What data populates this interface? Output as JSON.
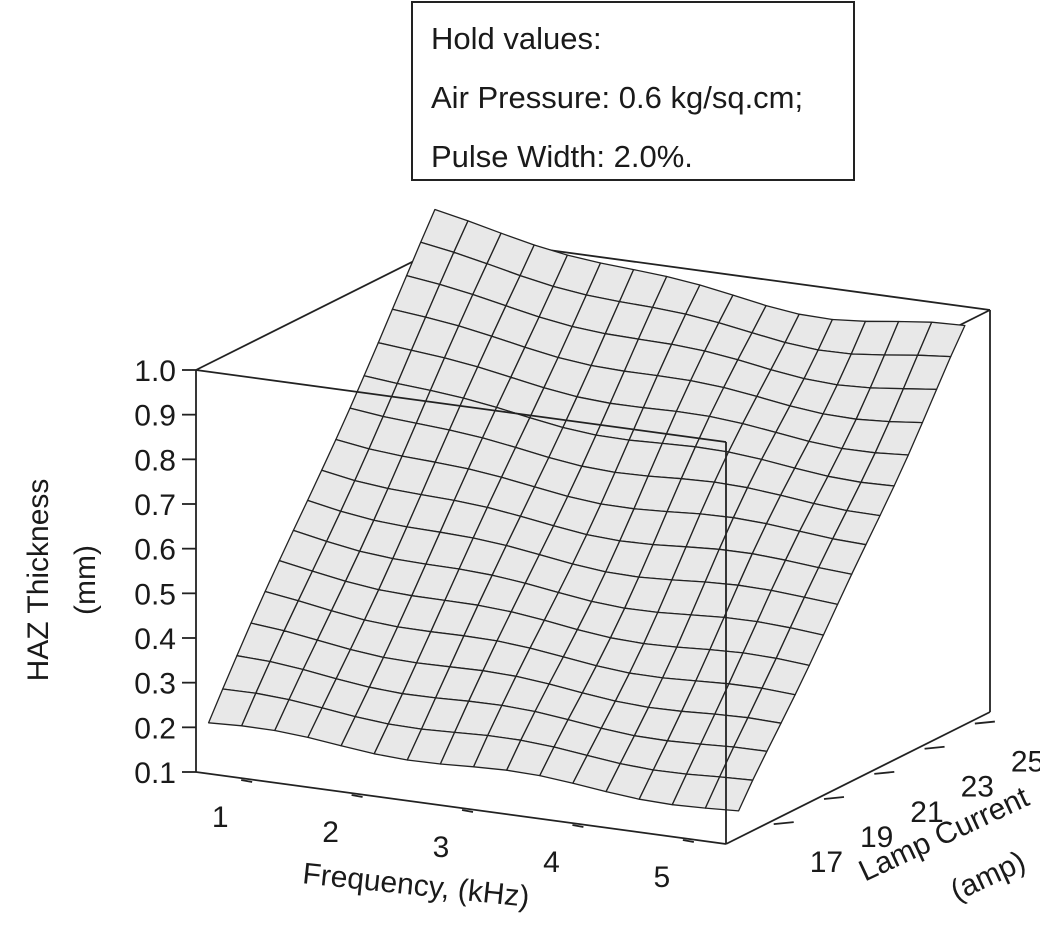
{
  "hold_box": {
    "title": "Hold values:",
    "line1": "Air Pressure: 0.6 kg/sq.cm;",
    "line2": "Pulse Width: 2.0%."
  },
  "chart_data": {
    "type": "surface",
    "zlabel_line1": "HAZ Thickness",
    "zlabel_line2": "(mm)",
    "xlabel": "Frequency, (kHz)",
    "ylabel_line1": "Lamp Current",
    "ylabel_line2": "(amp)",
    "x_ticks": [
      "1",
      "2",
      "3",
      "4",
      "5"
    ],
    "y_ticks": [
      "17",
      "19",
      "21",
      "23",
      "25"
    ],
    "z_ticks": [
      "0.1",
      "0.2",
      "0.3",
      "0.4",
      "0.5",
      "0.6",
      "0.7",
      "0.8",
      "0.9",
      "1.0"
    ],
    "xlim": [
      0.6,
      5.4
    ],
    "ylim": [
      15.5,
      26
    ],
    "zlim": [
      0.1,
      1.0
    ],
    "grid_x_range": [
      0.6,
      5.4
    ],
    "grid_y_range": [
      16,
      25
    ],
    "grid_size": 16,
    "corner_values": {
      "x_min_y_min": 0.19,
      "x_max_y_min": 0.15,
      "x_min_y_max": 1.09,
      "x_max_y_max": 0.98
    },
    "grid": false,
    "surface_color": "#e8e8e8",
    "line_color": "#222222"
  }
}
